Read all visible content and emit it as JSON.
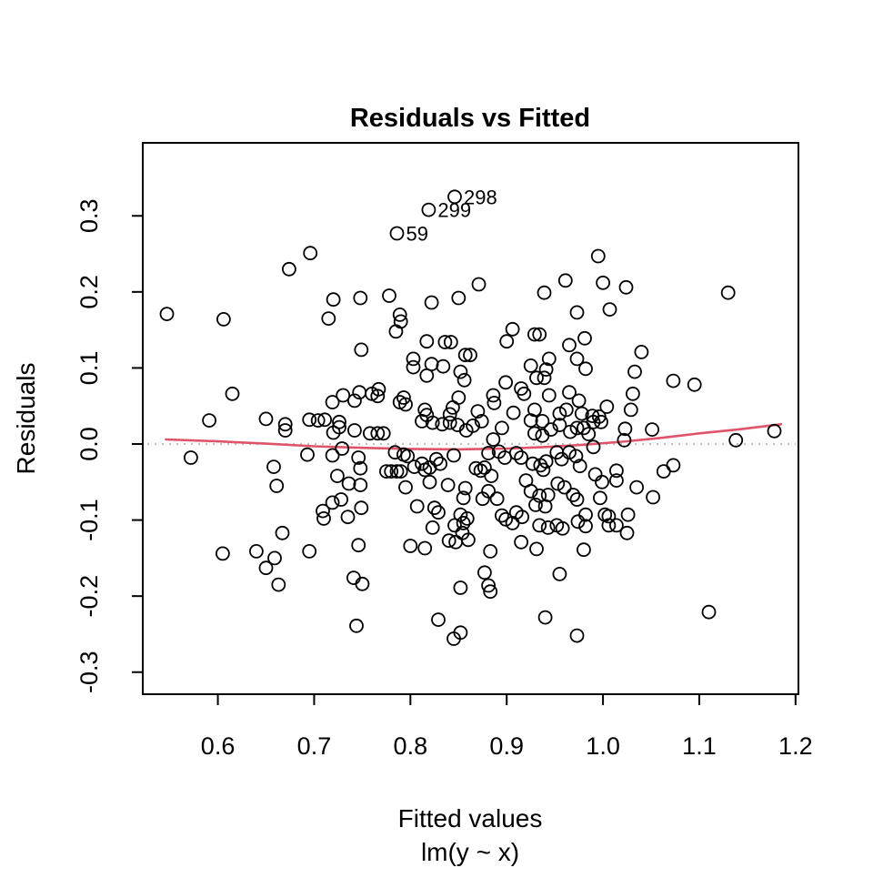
{
  "title": "Residuals vs Fitted",
  "x_axis": {
    "label": "Fitted values",
    "sub_label": "lm(y ~ x)"
  },
  "y_axis": {
    "label": "Residuals"
  },
  "chart_data": {
    "type": "scatter",
    "title": "Residuals vs Fitted",
    "xlabel": "Fitted values",
    "xlabel_sub": "lm(y ~ x)",
    "ylabel": "Residuals",
    "xlim": [
      0.522,
      1.203
    ],
    "ylim": [
      -0.329,
      0.396
    ],
    "x_ticks": [
      "0.6",
      "0.7",
      "0.8",
      "0.9",
      "1.0",
      "1.1",
      "1.2"
    ],
    "y_ticks": [
      "-0.3",
      "-0.2",
      "-0.1",
      "0.0",
      "0.1",
      "0.2",
      "0.3"
    ],
    "grid": false,
    "marker": {
      "shape": "open-circle",
      "radius_px": 7,
      "stroke_px": 1.8,
      "color": "#000000"
    },
    "colors": {
      "points": "#000000",
      "smooth_line": "#DF536B",
      "zero_line": "#BDBDBD",
      "frame": "#000000"
    },
    "zero_line": {
      "y": 0,
      "style": "dotted",
      "color": "#BDBDBD"
    },
    "smooth_line": {
      "name": "lowess smooth",
      "color": "#DF536B",
      "points": [
        [
          0.546,
          0.006
        ],
        [
          0.6,
          0.0035
        ],
        [
          0.65,
          0.0005
        ],
        [
          0.7,
          -0.003
        ],
        [
          0.75,
          -0.005
        ],
        [
          0.8,
          -0.0065
        ],
        [
          0.85,
          -0.007
        ],
        [
          0.9,
          -0.006
        ],
        [
          0.94,
          -0.004
        ],
        [
          0.98,
          -0.001
        ],
        [
          1.02,
          0.003
        ],
        [
          1.06,
          0.008
        ],
        [
          1.1,
          0.014
        ],
        [
          1.14,
          0.019
        ],
        [
          1.185,
          0.026
        ]
      ]
    },
    "labeled_points": [
      {
        "label": "298",
        "x": 0.846,
        "y": 0.325
      },
      {
        "label": "299",
        "x": 0.819,
        "y": 0.308
      },
      {
        "label": "59",
        "x": 0.786,
        "y": 0.277
      }
    ],
    "points": [
      [
        0.696,
        0.251
      ],
      [
        0.674,
        0.23
      ],
      [
        0.547,
        0.171
      ],
      [
        0.606,
        0.164
      ],
      [
        0.72,
        0.19
      ],
      [
        0.748,
        0.192
      ],
      [
        0.715,
        0.165
      ],
      [
        0.749,
        0.124
      ],
      [
        0.615,
        0.066
      ],
      [
        0.719,
        0.055
      ],
      [
        0.73,
        0.064
      ],
      [
        0.742,
        0.057
      ],
      [
        0.747,
        0.068
      ],
      [
        0.591,
        0.031
      ],
      [
        0.65,
        0.033
      ],
      [
        0.695,
        0.032
      ],
      [
        0.704,
        0.031
      ],
      [
        0.711,
        0.032
      ],
      [
        0.778,
        0.195
      ],
      [
        0.822,
        0.186
      ],
      [
        0.85,
        0.192
      ],
      [
        0.871,
        0.21
      ],
      [
        0.939,
        0.199
      ],
      [
        0.961,
        0.215
      ],
      [
        0.973,
        0.173
      ],
      [
        0.789,
        0.17
      ],
      [
        0.79,
        0.161
      ],
      [
        0.785,
        0.148
      ],
      [
        0.906,
        0.151
      ],
      [
        0.929,
        0.144
      ],
      [
        0.934,
        0.144
      ],
      [
        0.817,
        0.135
      ],
      [
        0.836,
        0.134
      ],
      [
        0.842,
        0.134
      ],
      [
        0.9,
        0.135
      ],
      [
        0.965,
        0.13
      ],
      [
        0.857,
        0.117
      ],
      [
        0.862,
        0.117
      ],
      [
        0.803,
        0.112
      ],
      [
        0.944,
        0.112
      ],
      [
        0.973,
        0.112
      ],
      [
        0.803,
        0.101
      ],
      [
        0.822,
        0.105
      ],
      [
        0.834,
        0.102
      ],
      [
        0.925,
        0.103
      ],
      [
        0.941,
        0.098
      ],
      [
        0.852,
        0.095
      ],
      [
        0.856,
        0.084
      ],
      [
        0.817,
        0.09
      ],
      [
        0.931,
        0.087
      ],
      [
        0.939,
        0.087
      ],
      [
        0.767,
        0.072
      ],
      [
        0.76,
        0.066
      ],
      [
        0.766,
        0.063
      ],
      [
        0.793,
        0.061
      ],
      [
        0.789,
        0.055
      ],
      [
        0.795,
        0.052
      ],
      [
        0.85,
        0.061
      ],
      [
        0.886,
        0.064
      ],
      [
        0.887,
        0.054
      ],
      [
        0.899,
        0.081
      ],
      [
        0.915,
        0.073
      ],
      [
        0.918,
        0.066
      ],
      [
        0.944,
        0.064
      ],
      [
        0.965,
        0.068
      ],
      [
        0.815,
        0.045
      ],
      [
        0.817,
        0.038
      ],
      [
        0.844,
        0.048
      ],
      [
        0.841,
        0.039
      ],
      [
        0.87,
        0.043
      ],
      [
        0.907,
        0.041
      ],
      [
        0.929,
        0.045
      ],
      [
        0.955,
        0.04
      ],
      [
        0.962,
        0.045
      ],
      [
        0.995,
        0.247
      ],
      [
        1.0,
        0.212
      ],
      [
        1.024,
        0.206
      ],
      [
        1.007,
        0.177
      ],
      [
        1.13,
        0.199
      ],
      [
        0.981,
        0.139
      ],
      [
        1.04,
        0.121
      ],
      [
        0.982,
        0.099
      ],
      [
        1.033,
        0.095
      ],
      [
        1.073,
        0.083
      ],
      [
        1.095,
        0.078
      ],
      [
        1.031,
        0.066
      ],
      [
        0.975,
        0.057
      ],
      [
        1.004,
        0.049
      ],
      [
        1.029,
        0.045
      ],
      [
        0.978,
        0.04
      ],
      [
        0.989,
        0.037
      ],
      [
        0.996,
        0.036
      ],
      [
        0.67,
        0.026
      ],
      [
        0.67,
        0.018
      ],
      [
        0.72,
        0.015
      ],
      [
        0.726,
        0.022
      ],
      [
        0.726,
        0.029
      ],
      [
        0.742,
        0.018
      ],
      [
        0.572,
        -0.018
      ],
      [
        0.658,
        -0.03
      ],
      [
        0.661,
        -0.055
      ],
      [
        0.693,
        -0.014
      ],
      [
        0.719,
        -0.015
      ],
      [
        0.729,
        -0.006
      ],
      [
        0.724,
        -0.042
      ],
      [
        0.736,
        -0.052
      ],
      [
        0.746,
        -0.018
      ],
      [
        0.748,
        -0.032
      ],
      [
        0.748,
        -0.054
      ],
      [
        0.719,
        -0.077
      ],
      [
        0.728,
        -0.073
      ],
      [
        0.749,
        -0.084
      ],
      [
        0.709,
        -0.088
      ],
      [
        0.71,
        -0.098
      ],
      [
        0.735,
        -0.096
      ],
      [
        0.667,
        -0.117
      ],
      [
        0.605,
        -0.144
      ],
      [
        0.659,
        -0.15
      ],
      [
        0.65,
        -0.163
      ],
      [
        0.64,
        -0.141
      ],
      [
        0.695,
        -0.141
      ],
      [
        0.663,
        -0.185
      ],
      [
        0.746,
        -0.133
      ],
      [
        0.741,
        -0.176
      ],
      [
        0.75,
        -0.184
      ],
      [
        0.744,
        -0.239
      ],
      [
        0.812,
        0.03
      ],
      [
        0.823,
        0.028
      ],
      [
        0.833,
        0.026
      ],
      [
        0.841,
        0.028
      ],
      [
        0.849,
        0.025
      ],
      [
        0.865,
        0.024
      ],
      [
        0.874,
        0.03
      ],
      [
        0.858,
        0.018
      ],
      [
        0.895,
        0.021
      ],
      [
        0.925,
        0.031
      ],
      [
        0.937,
        0.03
      ],
      [
        0.929,
        0.014
      ],
      [
        0.937,
        0.011
      ],
      [
        0.946,
        0.019
      ],
      [
        0.955,
        0.025
      ],
      [
        0.966,
        0.016
      ],
      [
        0.973,
        0.021
      ],
      [
        0.758,
        0.014
      ],
      [
        0.766,
        0.014
      ],
      [
        0.772,
        0.014
      ],
      [
        0.784,
        -0.011
      ],
      [
        0.793,
        -0.014
      ],
      [
        0.797,
        -0.016
      ],
      [
        0.775,
        -0.036
      ],
      [
        0.78,
        -0.036
      ],
      [
        0.786,
        -0.036
      ],
      [
        0.79,
        -0.036
      ],
      [
        0.804,
        -0.03
      ],
      [
        0.812,
        -0.026
      ],
      [
        0.815,
        -0.034
      ],
      [
        0.82,
        -0.031
      ],
      [
        0.827,
        -0.02
      ],
      [
        0.831,
        -0.026
      ],
      [
        0.845,
        -0.015
      ],
      [
        0.82,
        -0.05
      ],
      [
        0.839,
        -0.054
      ],
      [
        0.795,
        -0.057
      ],
      [
        0.857,
        -0.058
      ],
      [
        0.855,
        -0.071
      ],
      [
        0.868,
        -0.032
      ],
      [
        0.873,
        -0.035
      ],
      [
        0.877,
        -0.031
      ],
      [
        0.884,
        -0.042
      ],
      [
        0.881,
        -0.062
      ],
      [
        0.875,
        -0.072
      ],
      [
        0.89,
        -0.072
      ],
      [
        0.886,
        0.006
      ],
      [
        0.881,
        -0.012
      ],
      [
        0.892,
        -0.01
      ],
      [
        0.898,
        -0.018
      ],
      [
        0.91,
        -0.012
      ],
      [
        0.915,
        -0.018
      ],
      [
        0.927,
        -0.026
      ],
      [
        0.935,
        -0.028
      ],
      [
        0.938,
        -0.034
      ],
      [
        0.941,
        -0.023
      ],
      [
        0.952,
        -0.011
      ],
      [
        0.957,
        -0.02
      ],
      [
        0.965,
        -0.011
      ],
      [
        0.972,
        -0.016
      ],
      [
        0.953,
        -0.052
      ],
      [
        0.96,
        -0.057
      ],
      [
        0.969,
        -0.067
      ],
      [
        0.973,
        -0.073
      ],
      [
        0.92,
        -0.048
      ],
      [
        0.925,
        -0.062
      ],
      [
        0.934,
        -0.068
      ],
      [
        0.943,
        -0.067
      ],
      [
        0.93,
        -0.08
      ],
      [
        0.94,
        -0.082
      ],
      [
        0.91,
        -0.09
      ],
      [
        0.916,
        -0.096
      ],
      [
        0.906,
        -0.104
      ],
      [
        0.895,
        -0.094
      ],
      [
        0.899,
        -0.099
      ],
      [
        0.934,
        -0.107
      ],
      [
        0.943,
        -0.11
      ],
      [
        0.952,
        -0.107
      ],
      [
        0.958,
        -0.111
      ],
      [
        0.974,
        -0.102
      ],
      [
        0.852,
        -0.093
      ],
      [
        0.859,
        -0.098
      ],
      [
        0.855,
        -0.104
      ],
      [
        0.846,
        -0.107
      ],
      [
        0.854,
        -0.117
      ],
      [
        0.84,
        -0.127
      ],
      [
        0.847,
        -0.129
      ],
      [
        0.86,
        -0.126
      ],
      [
        0.825,
        -0.084
      ],
      [
        0.829,
        -0.09
      ],
      [
        0.807,
        -0.082
      ],
      [
        0.823,
        -0.11
      ],
      [
        0.8,
        -0.134
      ],
      [
        0.815,
        -0.137
      ],
      [
        0.883,
        -0.141
      ],
      [
        0.915,
        -0.129
      ],
      [
        0.931,
        -0.138
      ],
      [
        0.955,
        -0.171
      ],
      [
        0.877,
        -0.169
      ],
      [
        0.881,
        -0.186
      ],
      [
        0.883,
        -0.194
      ],
      [
        0.852,
        -0.189
      ],
      [
        0.829,
        -0.231
      ],
      [
        0.845,
        -0.256
      ],
      [
        0.852,
        -0.248
      ],
      [
        0.94,
        -0.228
      ],
      [
        0.973,
        -0.252
      ],
      [
        0.99,
        0.029
      ],
      [
        0.998,
        0.029
      ],
      [
        0.98,
        0.021
      ],
      [
        0.985,
        0.013
      ],
      [
        0.99,
        -0.004
      ],
      [
        1.023,
        0.02
      ],
      [
        1.022,
        0.005
      ],
      [
        1.051,
        0.019
      ],
      [
        1.138,
        0.005
      ],
      [
        1.178,
        0.017
      ],
      [
        0.976,
        -0.029
      ],
      [
        0.992,
        -0.04
      ],
      [
        0.999,
        -0.05
      ],
      [
        1.014,
        -0.035
      ],
      [
        1.014,
        -0.048
      ],
      [
        1.035,
        -0.057
      ],
      [
        1.052,
        -0.07
      ],
      [
        1.063,
        -0.036
      ],
      [
        1.073,
        -0.028
      ],
      [
        0.997,
        -0.071
      ],
      [
        0.982,
        -0.093
      ],
      [
        1.002,
        -0.093
      ],
      [
        1.006,
        -0.095
      ],
      [
        0.982,
        -0.108
      ],
      [
        1.006,
        -0.107
      ],
      [
        1.014,
        -0.107
      ],
      [
        1.026,
        -0.093
      ],
      [
        1.025,
        -0.117
      ],
      [
        0.98,
        -0.139
      ],
      [
        1.11,
        -0.221
      ]
    ]
  }
}
